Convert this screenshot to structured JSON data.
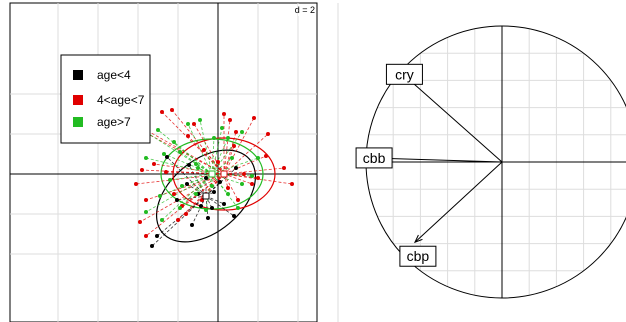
{
  "chart_data": [
    {
      "type": "scatter",
      "title": "",
      "scale_label": "d = 2",
      "xlabel": "",
      "ylabel": "",
      "xlim": [
        -8,
        7.3
      ],
      "ylim": [
        -5.1,
        5.35
      ],
      "grid": true,
      "legend_position": "top-left",
      "series": [
        {
          "name": "age<4",
          "color": "#000000",
          "points": [
            [
              -2.55,
              0.85
            ],
            [
              -1.45,
              0.45
            ],
            [
              -0.6,
              -0.2
            ],
            [
              -0.2,
              -0.9
            ],
            [
              0.3,
              -1.5
            ],
            [
              0.8,
              -2.1
            ],
            [
              -0.3,
              -1.7
            ],
            [
              0.1,
              -0.4
            ],
            [
              -1.3,
              -2.55
            ],
            [
              -0.85,
              -1.6
            ],
            [
              -2.05,
              -1.3
            ],
            [
              -3.05,
              -3.1
            ],
            [
              -3.3,
              -3.6
            ],
            [
              -0.5,
              -2.2
            ],
            [
              0.9,
              0.3
            ],
            [
              -1.55,
              -0.5
            ],
            [
              -1.0,
              -1.0
            ]
          ],
          "centroid": [
            -0.6,
            -1.1
          ],
          "ellipse": {
            "rx": 2.85,
            "ry": 1.8,
            "angle_deg": -40
          }
        },
        {
          "name": "4<age<7",
          "color": "#e00000",
          "points": [
            [
              -5.9,
              3.5
            ],
            [
              -5.4,
              3.0
            ],
            [
              -2.8,
              3.1
            ],
            [
              -2.3,
              3.2
            ],
            [
              -1.2,
              2.5
            ],
            [
              0.3,
              3.0
            ],
            [
              0.6,
              2.7
            ],
            [
              1.8,
              2.8
            ],
            [
              2.5,
              2.0
            ],
            [
              -3.8,
              0.2
            ],
            [
              -4.1,
              -0.5
            ],
            [
              -3.6,
              -1.3
            ],
            [
              -2.2,
              -1.0
            ],
            [
              -1.8,
              -1.6
            ],
            [
              -1.5,
              1.9
            ],
            [
              -0.7,
              1.2
            ],
            [
              0.8,
              1.4
            ],
            [
              1.3,
              0.0
            ],
            [
              1.7,
              -0.5
            ],
            [
              2.4,
              0.9
            ],
            [
              3.3,
              0.3
            ],
            [
              -3.9,
              -2.4
            ],
            [
              -3.6,
              -3.1
            ],
            [
              -2.0,
              -2.3
            ],
            [
              -1.6,
              -2.0
            ],
            [
              -0.8,
              -1.3
            ],
            [
              0.5,
              -0.7
            ],
            [
              1.0,
              -1.3
            ],
            [
              -3.2,
              0.5
            ],
            [
              2.0,
              -0.2
            ],
            [
              3.7,
              -0.5
            ],
            [
              0.0,
              0.6
            ],
            [
              -2.6,
              0.1
            ],
            [
              0.9,
              2.1
            ]
          ],
          "centroid": [
            0.3,
            0.0
          ],
          "ellipse": {
            "rx": 2.55,
            "ry": 1.8,
            "angle_deg": 0
          }
        },
        {
          "name": "age>7",
          "color": "#22bb22",
          "points": [
            [
              -4.4,
              2.6
            ],
            [
              -3.6,
              0.8
            ],
            [
              -2.7,
              1.0
            ],
            [
              -1.9,
              1.1
            ],
            [
              -1.0,
              0.3
            ],
            [
              -0.2,
              1.8
            ],
            [
              0.5,
              1.8
            ],
            [
              -2.8,
              -2.3
            ],
            [
              -1.9,
              -1.7
            ],
            [
              -1.1,
              -1.0
            ],
            [
              -0.3,
              -0.6
            ],
            [
              0.5,
              -1.0
            ],
            [
              1.2,
              -0.5
            ],
            [
              2.0,
              0.8
            ],
            [
              -3.0,
              2.2
            ],
            [
              -2.4,
              -0.3
            ],
            [
              -1.8,
              -0.6
            ],
            [
              -1.1,
              0.5
            ],
            [
              -0.6,
              -1.8
            ],
            [
              -0.9,
              2.7
            ],
            [
              1.0,
              -1.7
            ],
            [
              1.7,
              -0.1
            ],
            [
              0.2,
              2.3
            ],
            [
              -2.2,
              1.6
            ],
            [
              -3.6,
              -1.9
            ],
            [
              1.2,
              2.1
            ],
            [
              -1.5,
              2.5
            ],
            [
              -0.3,
              0.0
            ],
            [
              -2.9,
              -1.1
            ],
            [
              0.7,
              0.8
            ]
          ],
          "centroid": [
            -0.3,
            0.0
          ],
          "ellipse": {
            "rx": 2.55,
            "ry": 1.75,
            "angle_deg": 0
          }
        }
      ]
    },
    {
      "type": "correlation-circle",
      "title": "",
      "variables": [
        {
          "name": "cry",
          "x": -0.71,
          "y": 0.63
        },
        {
          "name": "cbb",
          "x": -0.97,
          "y": 0.03
        },
        {
          "name": "cbp",
          "x": -0.64,
          "y": -0.59
        }
      ],
      "xlim": [
        -1,
        1
      ],
      "ylim": [
        -1,
        1
      ],
      "grid": true
    }
  ]
}
